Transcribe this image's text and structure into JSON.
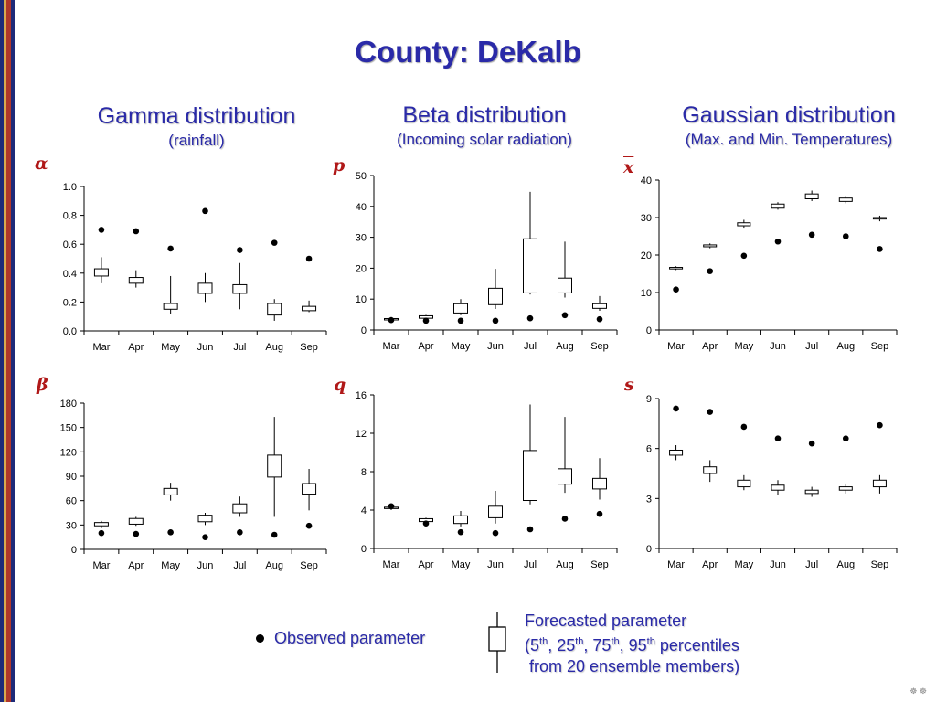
{
  "title": "County: DeKalb",
  "columns": [
    {
      "heading": "Gamma distribution",
      "subheading": "(rainfall)"
    },
    {
      "heading": "Beta distribution",
      "subheading": "(Incoming solar radiation)"
    },
    {
      "heading": "Gaussian distribution",
      "subheading": "(Max. and Min. Temperatures)"
    }
  ],
  "legend": {
    "observed": "Observed parameter",
    "forecast_line1": "Forecasted parameter",
    "forecast_line2_parts": [
      "(5",
      "th",
      ", 25",
      "th",
      ", 75",
      "th",
      ", 95",
      "th",
      " percentiles"
    ],
    "forecast_line3": "from 20 ensemble members)"
  },
  "corner_glyph": "☸ ☸",
  "colors": {
    "title": "#2a2aa8",
    "symbol": "#b01818",
    "stripes": [
      "#1e2a78",
      "#d9a84e",
      "#b0362a",
      "#1e2a78"
    ]
  },
  "chart_data": [
    {
      "id": "alpha",
      "type": "box",
      "symbol": "α",
      "overline": false,
      "categories": [
        "Mar",
        "Apr",
        "May",
        "Jun",
        "Jul",
        "Aug",
        "Sep"
      ],
      "yticks": [
        "0.0",
        "0.2",
        "0.4",
        "0.6",
        "0.8",
        "1.0"
      ],
      "ylim": [
        0,
        1.0
      ],
      "observed": [
        0.7,
        0.69,
        0.57,
        0.83,
        0.56,
        0.61,
        0.5
      ],
      "p5": [
        0.33,
        0.3,
        0.12,
        0.2,
        0.15,
        0.07,
        0.13
      ],
      "p25": [
        0.38,
        0.33,
        0.15,
        0.26,
        0.26,
        0.11,
        0.14
      ],
      "p75": [
        0.43,
        0.37,
        0.19,
        0.33,
        0.32,
        0.19,
        0.17
      ],
      "p95": [
        0.51,
        0.42,
        0.38,
        0.4,
        0.47,
        0.22,
        0.21
      ]
    },
    {
      "id": "p",
      "type": "box",
      "symbol": "p",
      "overline": false,
      "categories": [
        "Mar",
        "Apr",
        "May",
        "Jun",
        "Jul",
        "Aug",
        "Sep"
      ],
      "yticks": [
        "0",
        "10",
        "20",
        "30",
        "40",
        "50"
      ],
      "ylim": [
        0,
        50
      ],
      "observed": [
        3.2,
        3.0,
        3.0,
        3.0,
        3.8,
        4.8,
        3.5
      ],
      "p5": [
        3.0,
        3.6,
        4.8,
        6.8,
        11.5,
        10.5,
        6.2
      ],
      "p25": [
        3.4,
        3.8,
        5.5,
        8.2,
        12.0,
        12.0,
        7.0
      ],
      "p75": [
        3.7,
        4.6,
        8.5,
        13.5,
        29.5,
        16.8,
        8.5
      ],
      "p95": [
        4.2,
        4.9,
        10.0,
        19.8,
        44.7,
        28.6,
        11.0
      ]
    },
    {
      "id": "xbar",
      "type": "box",
      "symbol": "x",
      "overline": true,
      "categories": [
        "Mar",
        "Apr",
        "May",
        "Jun",
        "Jul",
        "Aug",
        "Sep"
      ],
      "yticks": [
        "0",
        "10",
        "20",
        "30",
        "40"
      ],
      "ylim": [
        0,
        40
      ],
      "observed": [
        10.8,
        15.7,
        19.8,
        23.6,
        25.4,
        25.0,
        21.6
      ],
      "p5": [
        16.0,
        21.8,
        27.3,
        32.1,
        34.4,
        33.8,
        29.0
      ],
      "p25": [
        16.3,
        22.2,
        27.8,
        32.5,
        35.0,
        34.3,
        29.6
      ],
      "p75": [
        16.7,
        22.7,
        28.6,
        33.6,
        36.3,
        35.2,
        30.0
      ],
      "p95": [
        17.0,
        23.1,
        29.4,
        34.1,
        37.2,
        35.8,
        30.5
      ]
    },
    {
      "id": "beta",
      "type": "box",
      "symbol": "β",
      "overline": false,
      "categories": [
        "Mar",
        "Apr",
        "May",
        "Jun",
        "Jul",
        "Aug",
        "Sep"
      ],
      "yticks": [
        "0",
        "30",
        "60",
        "90",
        "120",
        "150",
        "180"
      ],
      "ylim": [
        0,
        180
      ],
      "observed": [
        20,
        19,
        21,
        15,
        21,
        18,
        29
      ],
      "p5": [
        26,
        29,
        60,
        30,
        40,
        40,
        48
      ],
      "p25": [
        29,
        31,
        67,
        34,
        45,
        89,
        68
      ],
      "p75": [
        33,
        38,
        75,
        42,
        56,
        116,
        81
      ],
      "p95": [
        35,
        40,
        82,
        45,
        65,
        163,
        99
      ]
    },
    {
      "id": "q",
      "type": "box",
      "symbol": "q",
      "overline": false,
      "categories": [
        "Mar",
        "Apr",
        "May",
        "Jun",
        "Jul",
        "Aug",
        "Sep"
      ],
      "yticks": [
        "0",
        "4",
        "8",
        "12",
        "16"
      ],
      "ylim": [
        0,
        16
      ],
      "observed": [
        4.4,
        2.6,
        1.7,
        1.6,
        2.0,
        3.1,
        3.6
      ],
      "p5": [
        4.0,
        2.7,
        2.3,
        2.6,
        4.6,
        5.8,
        5.1
      ],
      "p25": [
        4.2,
        2.8,
        2.6,
        3.2,
        5.0,
        6.7,
        6.2
      ],
      "p75": [
        4.3,
        3.1,
        3.4,
        4.4,
        10.2,
        8.3,
        7.3
      ],
      "p95": [
        4.4,
        3.2,
        3.9,
        6.0,
        15.0,
        13.7,
        9.4
      ]
    },
    {
      "id": "s",
      "type": "box",
      "symbol": "s",
      "overline": false,
      "categories": [
        "Mar",
        "Apr",
        "May",
        "Jun",
        "Jul",
        "Aug",
        "Sep"
      ],
      "yticks": [
        "0",
        "3",
        "6",
        "9"
      ],
      "ylim": [
        0,
        9
      ],
      "observed": [
        8.4,
        8.2,
        7.3,
        6.6,
        6.3,
        6.6,
        7.4
      ],
      "p5": [
        5.3,
        4.0,
        3.5,
        3.2,
        3.1,
        3.3,
        3.3
      ],
      "p25": [
        5.6,
        4.5,
        3.7,
        3.5,
        3.3,
        3.5,
        3.7
      ],
      "p75": [
        5.9,
        4.9,
        4.1,
        3.8,
        3.5,
        3.7,
        4.1
      ],
      "p95": [
        6.2,
        5.3,
        4.4,
        4.1,
        3.7,
        3.9,
        4.4
      ]
    }
  ]
}
